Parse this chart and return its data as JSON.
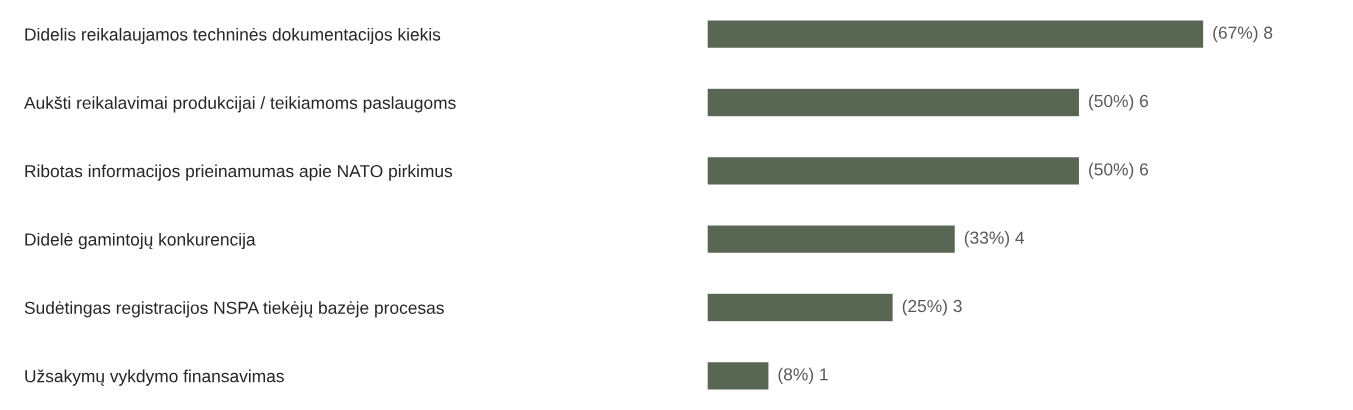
{
  "chart_data": {
    "type": "bar",
    "orientation": "horizontal",
    "categories": [
      "Didelis reikalaujamos techninės dokumentacijos kiekis",
      "Aukšti reikalavimai produkcijai / teikiamoms paslaugoms",
      "Ribotas informacijos prieinamumas apie NATO pirkimus",
      "Didelė gamintojų konkurencija",
      "Sudėtingas registracijos NSPA tiekėjų bazėje procesas",
      "Užsakymų vykdymo finansavimas"
    ],
    "values": [
      8,
      6,
      6,
      4,
      3,
      1
    ],
    "value_labels": [
      "(67%) 8",
      "(50%) 6",
      "(50%) 6",
      "(33%) 4",
      "(25%) 3",
      "(8%) 1"
    ],
    "color": "#5a6654",
    "grid": false,
    "legend": false
  }
}
